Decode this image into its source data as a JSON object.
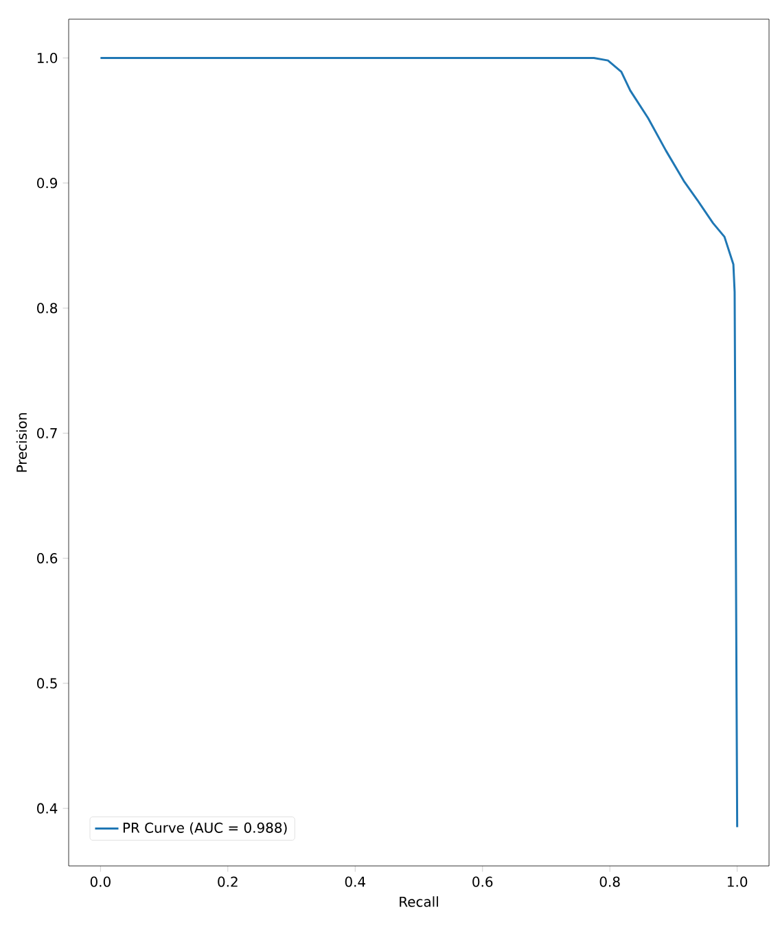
{
  "chart_data": {
    "type": "line",
    "xlabel": "Recall",
    "ylabel": "Precision",
    "xlim": [
      -0.05,
      1.05
    ],
    "ylim": [
      0.354,
      1.031
    ],
    "xticks": [
      {
        "value": 0,
        "label": "0.0"
      },
      {
        "value": 0.2,
        "label": "0.2"
      },
      {
        "value": 0.4,
        "label": "0.4"
      },
      {
        "value": 0.6,
        "label": "0.6"
      },
      {
        "value": 0.8,
        "label": "0.8"
      },
      {
        "value": 1,
        "label": "1.0"
      }
    ],
    "yticks": [
      {
        "value": 0.4,
        "label": "0.4"
      },
      {
        "value": 0.5,
        "label": "0.5"
      },
      {
        "value": 0.6,
        "label": "0.6"
      },
      {
        "value": 0.7,
        "label": "0.7"
      },
      {
        "value": 0.8,
        "label": "0.8"
      },
      {
        "value": 0.9,
        "label": "0.9"
      },
      {
        "value": 1,
        "label": "1.0"
      }
    ],
    "legend": "bottom left",
    "grid": false,
    "marker": "none",
    "line_style": "solid",
    "series": [
      {
        "name": "PR Curve (AUC = 0.988)",
        "color": "#1f77b4",
        "x": [
          0,
          0.2,
          0.4,
          0.6,
          0.775,
          0.797,
          0.818,
          0.832,
          0.86,
          0.888,
          0.917,
          0.938,
          0.962,
          0.98,
          0.994,
          0.996,
          0.998,
          1.0
        ],
        "values": [
          1.0,
          1.0,
          1.0,
          1.0,
          1.0,
          0.998,
          0.989,
          0.974,
          0.952,
          0.926,
          0.901,
          0.886,
          0.868,
          0.857,
          0.835,
          0.813,
          0.6,
          0.385
        ]
      }
    ]
  }
}
